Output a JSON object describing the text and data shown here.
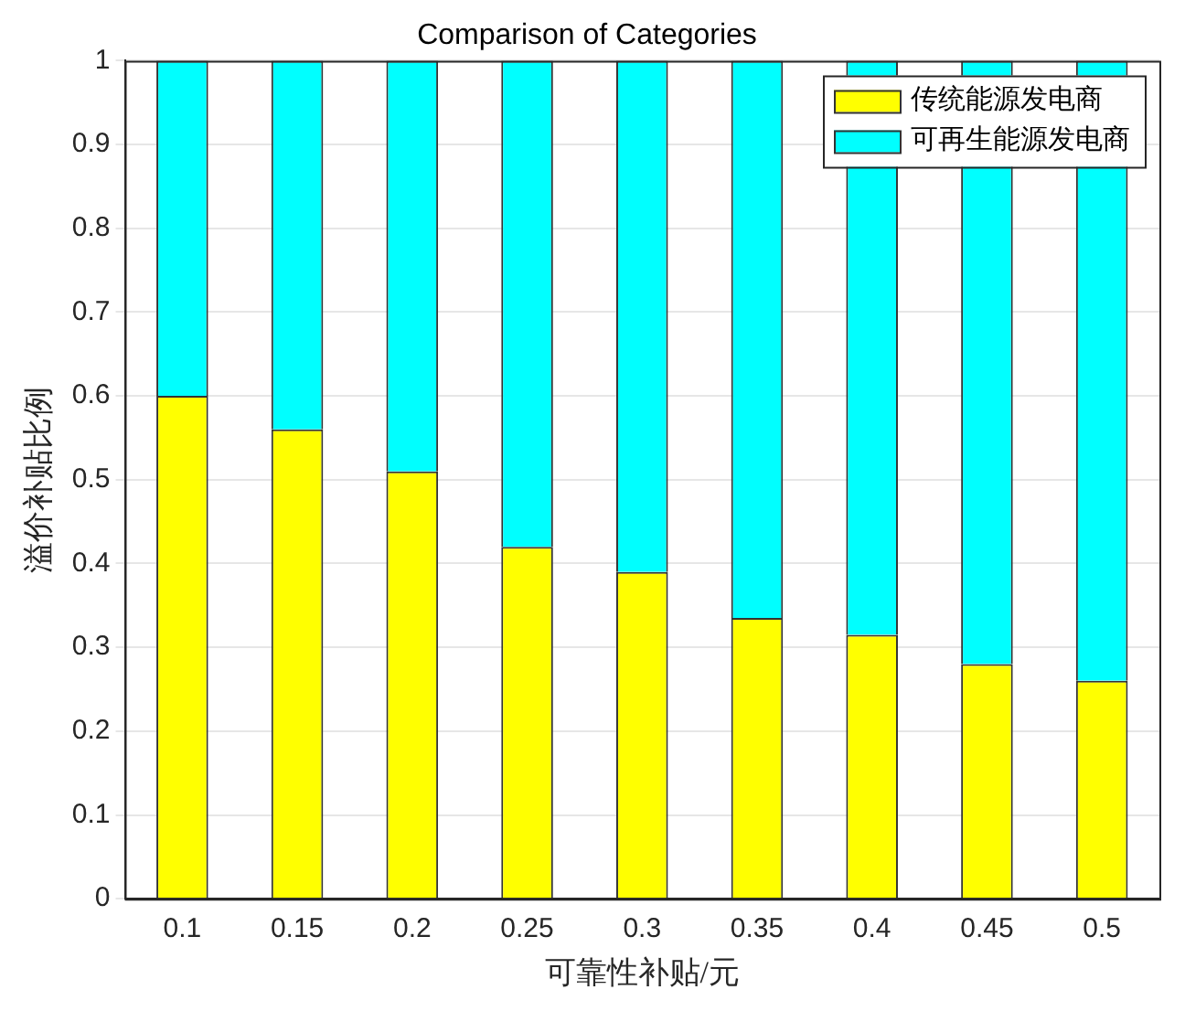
{
  "chart_data": {
    "type": "bar",
    "stacked": true,
    "title": "Comparison of Categories",
    "xlabel": "可靠性补贴/元",
    "ylabel": "溢价补贴比例",
    "categories": [
      "0.1",
      "0.15",
      "0.2",
      "0.25",
      "0.3",
      "0.35",
      "0.4",
      "0.45",
      "0.5"
    ],
    "series": [
      {
        "name": "传统能源发电商",
        "color": "#ffff00",
        "values": [
          0.6,
          0.56,
          0.51,
          0.42,
          0.39,
          0.335,
          0.315,
          0.28,
          0.26
        ]
      },
      {
        "name": "可再生能源发电商",
        "color": "#00ffff",
        "values": [
          0.4,
          0.44,
          0.49,
          0.58,
          0.61,
          0.665,
          0.685,
          0.72,
          0.74
        ]
      }
    ],
    "ylim": [
      0,
      1
    ],
    "yticks": [
      0,
      0.1,
      0.2,
      0.3,
      0.4,
      0.5,
      0.6,
      0.7,
      0.8,
      0.9,
      1
    ],
    "grid": "y",
    "legend": "top right"
  }
}
